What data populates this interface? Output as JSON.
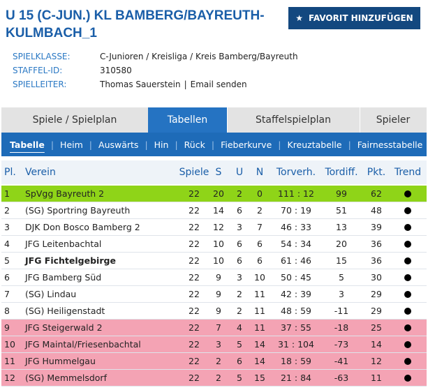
{
  "header": {
    "title": "U 15 (C-JUN.) KL BAMBERG/BAYREUTH-KULMBACH_1",
    "button": "FAVORIT HINZUFÜGEN",
    "info": [
      {
        "label": "SPIELKLASSE:",
        "value": "C-Junioren / Kreisliga / Kreis Bamberg/Bayreuth"
      },
      {
        "label": "STAFFEL-ID:",
        "value": "310580"
      },
      {
        "label": "SPIELLEITER:",
        "value": "Thomas Sauerstein",
        "link": "Email senden"
      }
    ]
  },
  "tabs": [
    "Spiele / Spielplan",
    "Tabellen",
    "Staffelspielplan",
    "Spieler"
  ],
  "subtabs": [
    "Tabelle",
    "Heim",
    "Auswärts",
    "Hin",
    "Rück",
    "Fieberkurve",
    "Kreuztabelle",
    "Fairnesstabelle"
  ],
  "table": {
    "columns": [
      "Pl.",
      "Verein",
      "Spiele",
      "S",
      "U",
      "N",
      "Torverh.",
      "Tordiff.",
      "Pkt.",
      "Trend"
    ],
    "rows": [
      [
        1,
        "SpVgg Bayreuth 2",
        22,
        20,
        2,
        0,
        "111 : 12",
        99,
        62
      ],
      [
        2,
        "(SG) Sportring Bayreuth",
        22,
        14,
        6,
        2,
        "70 : 19",
        51,
        48
      ],
      [
        3,
        "DJK Don Bosco Bamberg 2",
        22,
        12,
        3,
        7,
        "46 : 33",
        13,
        39
      ],
      [
        4,
        "JFG Leitenbachtal",
        22,
        10,
        6,
        6,
        "54 : 34",
        20,
        36
      ],
      [
        5,
        "JFG Fichtelgebirge",
        22,
        10,
        6,
        6,
        "61 : 46",
        15,
        36
      ],
      [
        6,
        "JFG Bamberg Süd",
        22,
        9,
        3,
        10,
        "50 : 45",
        5,
        30
      ],
      [
        7,
        "(SG) Lindau",
        22,
        9,
        2,
        11,
        "42 : 39",
        3,
        29
      ],
      [
        8,
        "(SG) Heiligenstadt",
        22,
        9,
        2,
        11,
        "48 : 59",
        -11,
        29
      ],
      [
        9,
        "JFG Steigerwald 2",
        22,
        7,
        4,
        11,
        "37 : 55",
        -18,
        25
      ],
      [
        10,
        "JFG Maintal/Friesenbachtal",
        22,
        3,
        5,
        14,
        "31 : 104",
        -73,
        14
      ],
      [
        11,
        "JFG Hummelgau",
        22,
        2,
        6,
        14,
        "18 : 59",
        -41,
        12
      ],
      [
        12,
        "(SG) Memmelsdorf",
        22,
        2,
        5,
        15,
        "21 : 84",
        -63,
        11
      ]
    ]
  }
}
